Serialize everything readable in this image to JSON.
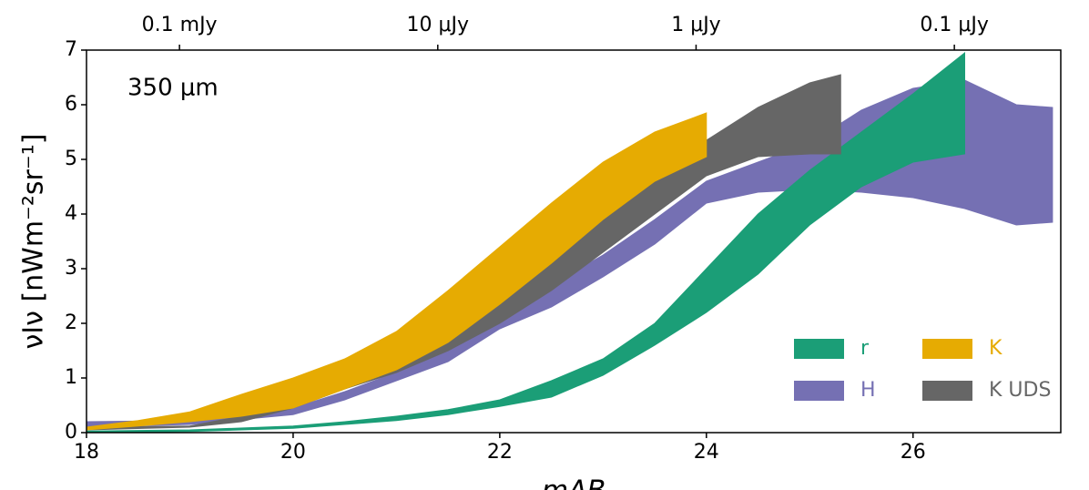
{
  "chart_data": {
    "type": "band",
    "annotation": "350 μm",
    "x_label": "mAB",
    "y_label": "νIν [nWm⁻²sr⁻¹]",
    "xlim": [
      18,
      27.43
    ],
    "ylim": [
      0,
      7
    ],
    "xticks": [
      18,
      20,
      22,
      24,
      26
    ],
    "yticks": [
      0,
      1,
      2,
      3,
      4,
      5,
      6,
      7
    ],
    "top_xticks": [
      {
        "value": 18.9,
        "label": "0.1 mJy"
      },
      {
        "value": 21.4,
        "label": "10 μJy"
      },
      {
        "value": 23.9,
        "label": "1 μJy"
      },
      {
        "value": 26.4,
        "label": "0.1 μJy"
      }
    ],
    "legend": "lower right",
    "series": [
      {
        "name": "H",
        "color": "#7570b3",
        "x": [
          18,
          19,
          20,
          20.5,
          21,
          21.5,
          22,
          22.5,
          23,
          23.5,
          24,
          24.5,
          25,
          25.5,
          26,
          26.5,
          27,
          27.35
        ],
        "upper": [
          0.2,
          0.22,
          0.45,
          0.75,
          1.1,
          1.5,
          2.2,
          2.7,
          3.25,
          3.9,
          4.6,
          4.95,
          5.3,
          5.9,
          6.3,
          6.45,
          6.0,
          5.95
        ],
        "lower": [
          0.1,
          0.15,
          0.33,
          0.6,
          0.95,
          1.3,
          1.9,
          2.3,
          2.85,
          3.45,
          4.2,
          4.4,
          4.45,
          4.4,
          4.3,
          4.1,
          3.8,
          3.85
        ]
      },
      {
        "name": "r",
        "color": "#1b9e77",
        "x": [
          18,
          19,
          20,
          20.5,
          21,
          21.5,
          22,
          22.5,
          23,
          23.5,
          24,
          24.5,
          25,
          25.5,
          26,
          26.5
        ],
        "upper": [
          0.03,
          0.05,
          0.12,
          0.2,
          0.3,
          0.42,
          0.6,
          0.95,
          1.35,
          2.0,
          3.0,
          4.0,
          4.8,
          5.5,
          6.2,
          6.95
        ],
        "lower": [
          0,
          0.02,
          0.08,
          0.15,
          0.22,
          0.33,
          0.48,
          0.65,
          1.05,
          1.6,
          2.2,
          2.9,
          3.8,
          4.5,
          4.95,
          5.1
        ]
      },
      {
        "name": "K UDS",
        "color": "#666666",
        "x": [
          18,
          19,
          19.5,
          20,
          20.5,
          21,
          21.5,
          22,
          22.5,
          23,
          23.5,
          24,
          24.5,
          25,
          25.3
        ],
        "upper": [
          0.1,
          0.12,
          0.3,
          0.55,
          0.95,
          1.35,
          1.85,
          2.5,
          3.2,
          3.95,
          4.7,
          5.35,
          5.95,
          6.4,
          6.55
        ],
        "lower": [
          0.05,
          0.1,
          0.2,
          0.45,
          0.8,
          1.1,
          1.5,
          2.0,
          2.6,
          3.3,
          4.0,
          4.7,
          5.05,
          5.1,
          5.1
        ]
      },
      {
        "name": "K",
        "color": "#e6ab02",
        "x": [
          18,
          18.5,
          19,
          19.5,
          20,
          20.5,
          21,
          21.5,
          22,
          22.5,
          23,
          23.5,
          24
        ],
        "upper": [
          0.1,
          0.22,
          0.38,
          0.7,
          1.0,
          1.35,
          1.85,
          2.6,
          3.4,
          4.2,
          4.95,
          5.5,
          5.85
        ],
        "lower": [
          0.05,
          0.12,
          0.2,
          0.3,
          0.45,
          0.8,
          1.15,
          1.65,
          2.35,
          3.1,
          3.9,
          4.6,
          5.05
        ]
      }
    ]
  }
}
